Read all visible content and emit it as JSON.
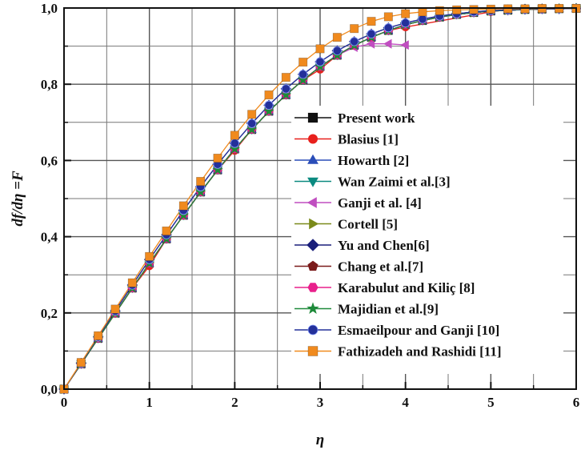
{
  "chart_data": {
    "type": "line",
    "xlabel": "η",
    "ylabel": "df/dη =F",
    "xlim": [
      0,
      6
    ],
    "ylim": [
      0,
      1.0
    ],
    "x_ticks": [
      "0",
      "1",
      "2",
      "3",
      "4",
      "5",
      "6"
    ],
    "y_ticks": [
      "0,0",
      "0,2",
      "0,4",
      "0,6",
      "0,8",
      "1,0"
    ],
    "grid": true,
    "legend_position": "center-right",
    "series": [
      {
        "name": "Present work",
        "color": "#111111",
        "marker": "square",
        "x": [
          0,
          0.2,
          0.4,
          0.6,
          0.8,
          1.0,
          1.2,
          1.4,
          1.6,
          1.8,
          2.0,
          2.2,
          2.4,
          2.6,
          2.8,
          3.0,
          3.2,
          3.4,
          3.6,
          3.8,
          4.0,
          4.2,
          4.4,
          4.6,
          4.8,
          5.0,
          5.2,
          5.4,
          5.6,
          5.8,
          6.0
        ],
        "y": [
          0,
          0.066,
          0.133,
          0.199,
          0.265,
          0.33,
          0.394,
          0.456,
          0.517,
          0.575,
          0.63,
          0.681,
          0.729,
          0.772,
          0.811,
          0.846,
          0.876,
          0.902,
          0.923,
          0.941,
          0.956,
          0.967,
          0.976,
          0.983,
          0.988,
          0.992,
          0.994,
          0.996,
          0.997,
          0.998,
          0.999
        ]
      },
      {
        "name": "Blasius [1]",
        "color": "#e8201c",
        "marker": "circle",
        "x": [
          0,
          0.2,
          0.4,
          0.6,
          0.8,
          1.0,
          1.2,
          1.4,
          1.6,
          1.8,
          2.0,
          2.2,
          2.4,
          2.6,
          2.8,
          3.0,
          3.2,
          3.4,
          3.6,
          3.8,
          4.0,
          5.0
        ],
        "y": [
          0,
          0.066,
          0.133,
          0.199,
          0.265,
          0.323,
          0.394,
          0.456,
          0.517,
          0.575,
          0.626,
          0.681,
          0.729,
          0.772,
          0.811,
          0.839,
          0.876,
          0.902,
          0.923,
          0.941,
          0.95,
          0.99
        ]
      },
      {
        "name": "Howarth [2]",
        "color": "#2a4db8",
        "marker": "triangle-up",
        "x": [
          0,
          0.2,
          0.4,
          0.6,
          0.8,
          1.0,
          1.2,
          1.4,
          1.6,
          1.8,
          2.0,
          2.2,
          2.4,
          2.6,
          2.8,
          3.0,
          3.2,
          3.4,
          3.6,
          3.8,
          4.0,
          4.2,
          4.4,
          4.6,
          4.8,
          5.0,
          5.2,
          5.4,
          5.6,
          5.8,
          6.0
        ],
        "y": [
          0,
          0.066,
          0.133,
          0.199,
          0.265,
          0.33,
          0.394,
          0.456,
          0.517,
          0.575,
          0.63,
          0.681,
          0.729,
          0.772,
          0.811,
          0.846,
          0.876,
          0.902,
          0.923,
          0.941,
          0.956,
          0.967,
          0.976,
          0.983,
          0.988,
          0.992,
          0.994,
          0.996,
          0.997,
          0.998,
          0.999
        ]
      },
      {
        "name": "Wan Zaimi et al.[3]",
        "color": "#0b8a80",
        "marker": "triangle-down",
        "x": [
          0,
          0.2,
          0.4,
          0.6,
          0.8,
          1.0,
          1.2,
          1.4,
          1.6,
          1.8,
          2.0,
          2.2,
          2.4,
          2.6,
          2.8,
          3.0,
          3.2,
          3.4,
          3.6,
          3.8,
          4.0,
          4.2,
          4.4,
          4.6,
          4.8,
          5.0,
          5.2,
          5.4,
          5.6,
          5.8,
          6.0
        ],
        "y": [
          0,
          0.066,
          0.133,
          0.199,
          0.265,
          0.33,
          0.394,
          0.456,
          0.517,
          0.575,
          0.63,
          0.681,
          0.729,
          0.772,
          0.811,
          0.846,
          0.876,
          0.902,
          0.923,
          0.941,
          0.956,
          0.967,
          0.976,
          0.983,
          0.988,
          0.992,
          0.994,
          0.996,
          0.997,
          0.998,
          0.999
        ]
      },
      {
        "name": "Ganji et al. [4]",
        "color": "#c04ec0",
        "marker": "triangle-left",
        "x": [
          0,
          0.2,
          0.4,
          0.6,
          0.8,
          1.0,
          1.2,
          1.4,
          1.6,
          1.8,
          2.0,
          2.2,
          2.4,
          2.6,
          2.8,
          3.0,
          3.2,
          3.4,
          3.6,
          3.8,
          4.0
        ],
        "y": [
          0,
          0.066,
          0.133,
          0.199,
          0.265,
          0.33,
          0.394,
          0.456,
          0.517,
          0.575,
          0.63,
          0.681,
          0.729,
          0.772,
          0.811,
          0.846,
          0.876,
          0.897,
          0.906,
          0.906,
          0.903
        ]
      },
      {
        "name": "Cortell [5]",
        "color": "#7a8a1a",
        "marker": "triangle-right",
        "x": [
          0,
          0.2,
          0.4,
          0.6,
          0.8,
          1.0,
          1.2,
          1.4,
          1.6,
          1.8,
          2.0,
          2.2,
          2.4,
          2.6,
          2.8,
          3.0,
          3.2,
          3.4,
          3.6,
          3.8,
          4.0,
          4.2,
          4.4,
          4.6,
          4.8,
          5.0,
          5.2,
          5.4,
          5.6,
          5.8,
          6.0
        ],
        "y": [
          0,
          0.066,
          0.133,
          0.199,
          0.265,
          0.33,
          0.394,
          0.456,
          0.517,
          0.575,
          0.63,
          0.681,
          0.729,
          0.772,
          0.811,
          0.846,
          0.876,
          0.902,
          0.923,
          0.941,
          0.956,
          0.967,
          0.976,
          0.983,
          0.988,
          0.992,
          0.994,
          0.996,
          0.997,
          0.998,
          0.999
        ]
      },
      {
        "name": "Yu and Chen[6]",
        "color": "#1a1f7a",
        "marker": "diamond",
        "x": [
          0,
          0.2,
          0.4,
          0.6,
          0.8,
          1.0,
          1.2,
          1.4,
          1.6,
          1.8,
          2.0,
          2.2,
          2.4,
          2.6,
          2.8,
          3.0,
          3.2,
          3.4,
          3.6,
          3.8,
          4.0,
          4.2,
          4.4,
          4.6,
          4.8,
          5.0,
          5.2,
          5.4,
          5.6,
          5.8,
          6.0
        ],
        "y": [
          0,
          0.068,
          0.137,
          0.205,
          0.273,
          0.34,
          0.405,
          0.469,
          0.531,
          0.59,
          0.645,
          0.697,
          0.745,
          0.788,
          0.826,
          0.859,
          0.888,
          0.912,
          0.932,
          0.948,
          0.961,
          0.971,
          0.979,
          0.985,
          0.99,
          0.993,
          0.995,
          0.997,
          0.998,
          0.998,
          0.999
        ]
      },
      {
        "name": "Chang et al.[7]",
        "color": "#7a1a1a",
        "marker": "pentagon",
        "x": [
          0,
          0.2,
          0.4,
          0.6,
          0.8,
          1.0,
          1.2,
          1.4,
          1.6,
          1.8,
          2.0,
          2.2,
          2.4,
          2.6,
          2.8,
          3.0,
          3.2,
          3.4,
          3.6,
          3.8,
          4.0,
          4.2,
          4.4,
          4.6,
          4.8,
          5.0,
          5.2,
          5.4,
          5.6,
          5.8,
          6.0
        ],
        "y": [
          0,
          0.066,
          0.133,
          0.199,
          0.265,
          0.33,
          0.394,
          0.456,
          0.517,
          0.575,
          0.63,
          0.681,
          0.729,
          0.772,
          0.811,
          0.846,
          0.876,
          0.902,
          0.923,
          0.941,
          0.956,
          0.967,
          0.976,
          0.983,
          0.988,
          0.992,
          0.994,
          0.996,
          0.997,
          0.998,
          0.999
        ]
      },
      {
        "name": "Karabulut and Kiliç [8]",
        "color": "#e8208c",
        "marker": "hexagon",
        "x": [
          0,
          0.2,
          0.4,
          0.6,
          0.8,
          1.0,
          1.2,
          1.4,
          1.6,
          1.8,
          2.0,
          2.2,
          2.4,
          2.6,
          2.8,
          3.0,
          3.2,
          3.4,
          3.6,
          3.8,
          4.0,
          4.2,
          4.4,
          4.6,
          4.8,
          5.0,
          5.2,
          5.4,
          5.6,
          5.8,
          6.0
        ],
        "y": [
          0,
          0.066,
          0.133,
          0.199,
          0.265,
          0.33,
          0.394,
          0.456,
          0.517,
          0.575,
          0.63,
          0.681,
          0.729,
          0.772,
          0.811,
          0.846,
          0.876,
          0.902,
          0.923,
          0.941,
          0.956,
          0.967,
          0.976,
          0.983,
          0.988,
          0.992,
          0.994,
          0.996,
          0.997,
          0.998,
          0.999
        ]
      },
      {
        "name": "Majidian et al.[9]",
        "color": "#1e8a3a",
        "marker": "star",
        "x": [
          0,
          0.2,
          0.4,
          0.6,
          0.8,
          1.0,
          1.2,
          1.4,
          1.6,
          1.8,
          2.0,
          2.2,
          2.4,
          2.6,
          2.8,
          3.0,
          3.2,
          3.4,
          3.6,
          3.8,
          4.0,
          4.2,
          4.4,
          4.6,
          4.8,
          5.0,
          5.2,
          5.4,
          5.6,
          5.8,
          6.0
        ],
        "y": [
          0,
          0.066,
          0.133,
          0.199,
          0.265,
          0.33,
          0.394,
          0.456,
          0.517,
          0.575,
          0.63,
          0.681,
          0.729,
          0.772,
          0.811,
          0.846,
          0.876,
          0.902,
          0.923,
          0.941,
          0.956,
          0.967,
          0.976,
          0.983,
          0.988,
          0.992,
          0.994,
          0.996,
          0.997,
          0.998,
          0.999
        ]
      },
      {
        "name": "Esmaeilpour and Ganji [10]",
        "color": "#24309a",
        "marker": "sphere",
        "x": [
          0,
          0.2,
          0.4,
          0.6,
          0.8,
          1.0,
          1.2,
          1.4,
          1.6,
          1.8,
          2.0,
          2.2,
          2.4,
          2.6,
          2.8,
          3.0,
          3.2,
          3.4,
          3.6,
          3.8,
          4.0,
          4.2,
          4.4,
          4.6,
          4.8,
          5.0,
          5.2,
          5.4,
          5.6,
          5.8,
          6.0
        ],
        "y": [
          0,
          0.068,
          0.137,
          0.205,
          0.273,
          0.34,
          0.405,
          0.469,
          0.531,
          0.59,
          0.645,
          0.697,
          0.745,
          0.788,
          0.826,
          0.859,
          0.888,
          0.912,
          0.932,
          0.948,
          0.961,
          0.971,
          0.979,
          0.985,
          0.99,
          0.993,
          0.995,
          0.997,
          0.998,
          0.998,
          0.999
        ]
      },
      {
        "name": "Fathizadeh  and Rashidi [11]",
        "color": "#f08a1e",
        "marker": "square",
        "x": [
          0,
          0.2,
          0.4,
          0.6,
          0.8,
          1.0,
          1.2,
          1.4,
          1.6,
          1.8,
          2.0,
          2.2,
          2.4,
          2.6,
          2.8,
          3.0,
          3.2,
          3.4,
          3.6,
          3.8,
          4.0,
          4.2,
          4.4,
          4.6,
          4.8,
          5.0,
          5.2,
          5.4,
          5.6,
          5.8,
          6.0
        ],
        "y": [
          0,
          0.07,
          0.14,
          0.21,
          0.279,
          0.348,
          0.415,
          0.481,
          0.545,
          0.606,
          0.666,
          0.721,
          0.772,
          0.818,
          0.858,
          0.893,
          0.923,
          0.946,
          0.965,
          0.977,
          0.985,
          0.99,
          0.993,
          0.995,
          0.996,
          0.997,
          0.998,
          0.998,
          0.999,
          0.999,
          0.999
        ]
      }
    ]
  }
}
